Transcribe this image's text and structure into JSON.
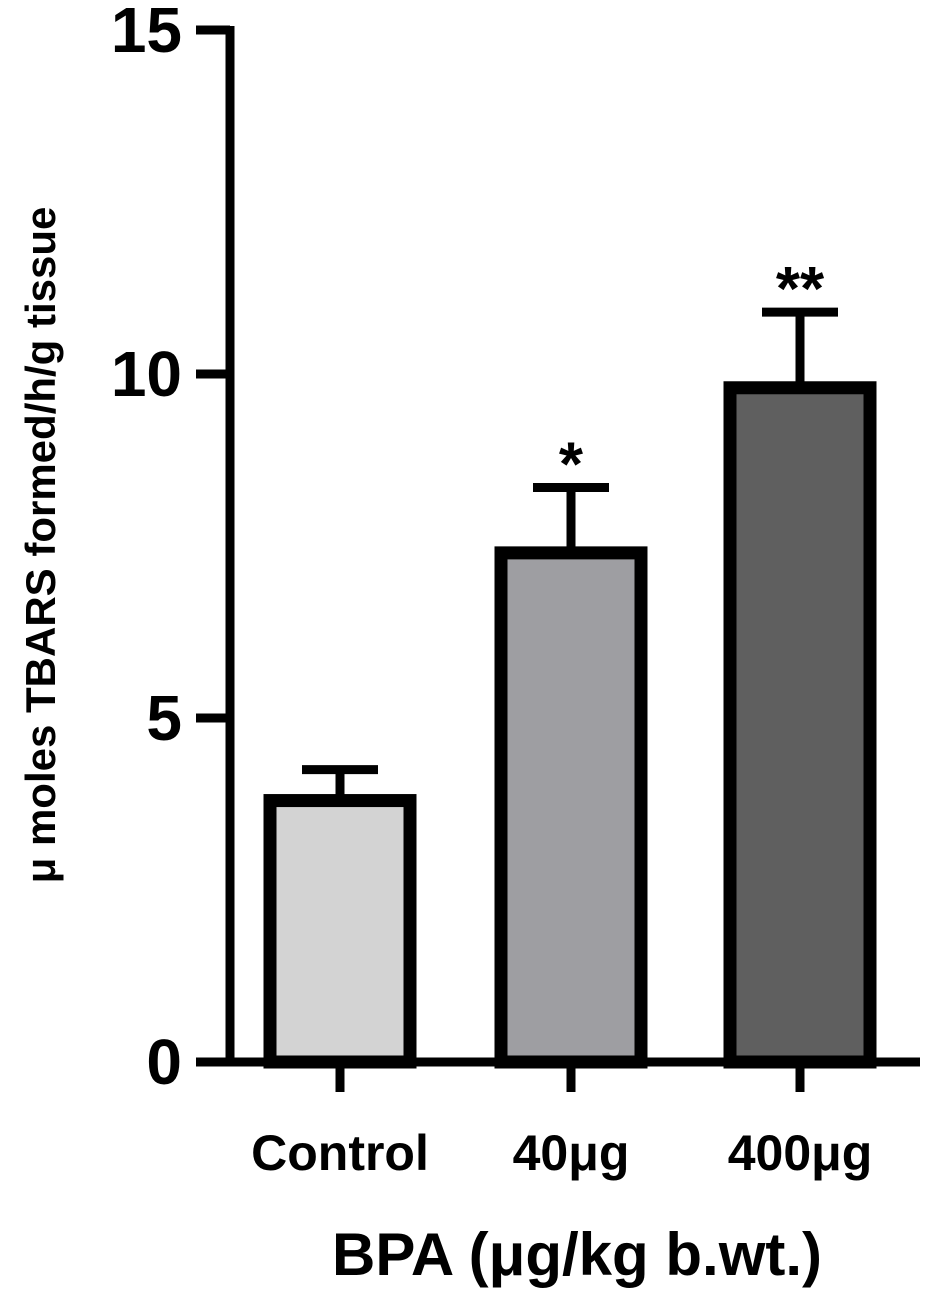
{
  "chart_data": {
    "type": "bar",
    "title": "",
    "xlabel": "BPA (μg/kg b.wt.)",
    "ylabel": "μ moles TBARS formed/h/g tissue",
    "ylim": [
      0,
      15
    ],
    "yticks": [
      0,
      5,
      10,
      15
    ],
    "grid": false,
    "categories": [
      "Control",
      "40μg",
      "400μg"
    ],
    "values": [
      3.8,
      7.4,
      9.8
    ],
    "errors": [
      0.45,
      0.95,
      1.1
    ],
    "significance": [
      "",
      "*",
      "**"
    ],
    "bar_colors": [
      "#d3d3d3",
      "#9e9ea2",
      "#5f5f5f"
    ]
  }
}
